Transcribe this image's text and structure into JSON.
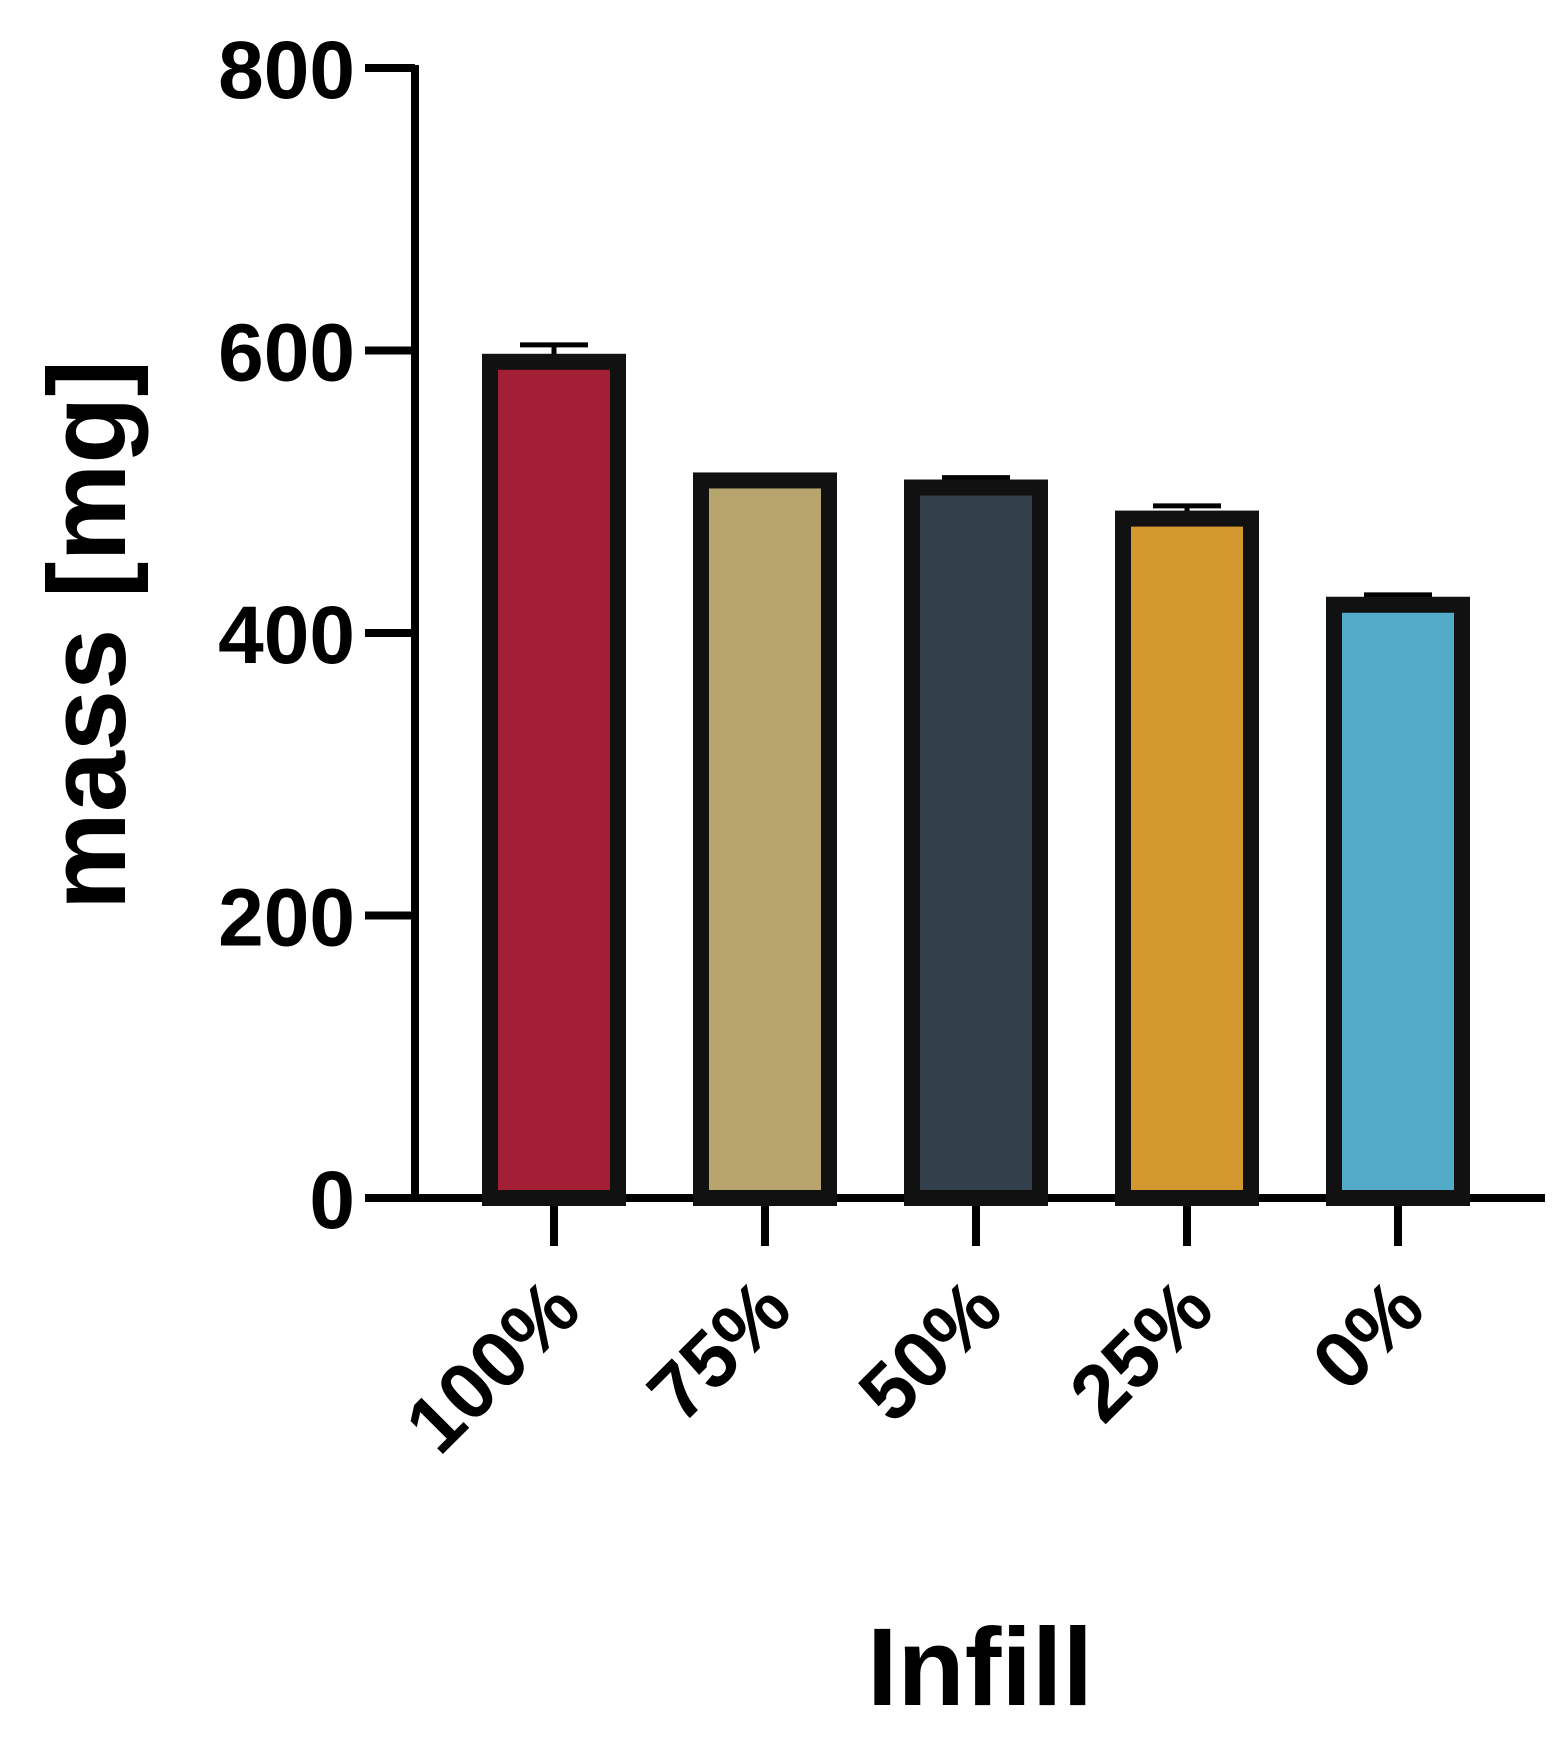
{
  "chart_data": {
    "type": "bar",
    "categories": [
      "100%",
      "75%",
      "50%",
      "25%",
      "0%"
    ],
    "values": [
      592,
      508,
      503,
      481,
      420
    ],
    "errors": [
      12,
      3,
      7,
      9,
      7
    ],
    "colors": [
      "#a31f36",
      "#b8a56e",
      "#333f4b",
      "#d3982e",
      "#52abc8"
    ],
    "xlabel": "Infill",
    "ylabel": "mass [mg]",
    "ylim": [
      0,
      800
    ],
    "yticks": [
      0,
      200,
      400,
      600,
      800
    ],
    "grid": false
  }
}
